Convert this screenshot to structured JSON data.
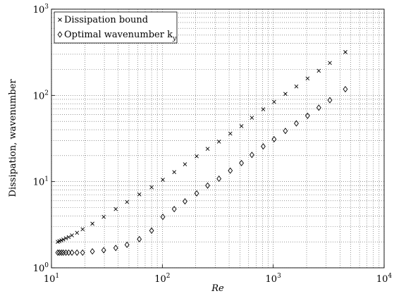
{
  "chart_data": {
    "type": "scatter",
    "xlabel": "Re",
    "ylabel": "Dissipation, wavenumber",
    "x": [
      11.4,
      11.8,
      12.3,
      12.8,
      13.5,
      14.3,
      15.3,
      17,
      19.1,
      23.4,
      29.6,
      38,
      48,
      62,
      80,
      101,
      128,
      160,
      204,
      256,
      324,
      410,
      517,
      642,
      812,
      1018,
      1287,
      1616,
      2039,
      2576,
      3240,
      4470
    ],
    "series": [
      {
        "name": "Dissipation bound",
        "marker": "x",
        "color": "#000000",
        "values": [
          2.0,
          2.04,
          2.08,
          2.13,
          2.2,
          2.27,
          2.38,
          2.55,
          2.8,
          3.25,
          3.9,
          4.8,
          5.8,
          7.1,
          8.6,
          10.5,
          12.9,
          15.9,
          19.7,
          24,
          29.1,
          36,
          44,
          55,
          69,
          84,
          104,
          127,
          157,
          193,
          238,
          318
        ]
      },
      {
        "name": "Optimal wavenumber k_y",
        "marker": "diamond",
        "color": "#000000",
        "values": [
          1.5,
          1.5,
          1.5,
          1.5,
          1.5,
          1.5,
          1.5,
          1.5,
          1.5,
          1.55,
          1.6,
          1.7,
          1.85,
          2.15,
          2.7,
          3.9,
          4.8,
          5.9,
          7.3,
          9.0,
          10.8,
          13.4,
          16.4,
          20.4,
          25.6,
          31,
          38.7,
          47.3,
          58,
          72,
          88,
          118
        ]
      }
    ],
    "xscale": "log",
    "yscale": "log",
    "xlim": [
      10,
      10000
    ],
    "ylim": [
      1,
      1000
    ],
    "xticks": [
      {
        "value": 10,
        "label": "10^1"
      },
      {
        "value": 100,
        "label": "10^2"
      },
      {
        "value": 1000,
        "label": "10^3"
      },
      {
        "value": 10000,
        "label": "10^4"
      }
    ],
    "yticks": [
      {
        "value": 1,
        "label": "10^0"
      },
      {
        "value": 10,
        "label": "10^1"
      },
      {
        "value": 100,
        "label": "10^2"
      },
      {
        "value": 1000,
        "label": "10^3"
      }
    ],
    "grid": true,
    "minor_grid": true,
    "legend": "upper left"
  }
}
